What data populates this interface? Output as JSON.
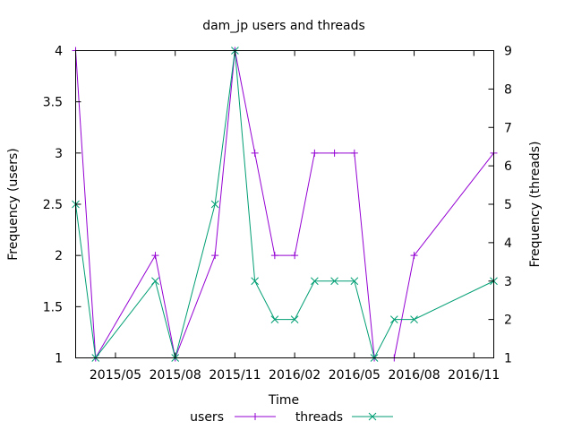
{
  "chart_data": {
    "type": "line",
    "title": "dam_jp users and threads",
    "xlabel": "Time",
    "ylabel": "Frequency (users)",
    "y2label": "Frequency (threads)",
    "x": [
      "2015-03",
      "2015-04",
      "2015-05",
      "2015-06",
      "2015-07",
      "2015-08",
      "2015-09",
      "2015-10",
      "2015-11",
      "2015-12",
      "2016-01",
      "2016-02",
      "2016-03",
      "2016-04",
      "2016-05",
      "2016-06",
      "2016-07",
      "2016-08",
      "2016-09",
      "2016-10",
      "2016-11",
      "2016-12"
    ],
    "xlim": [
      "2015-03",
      "2016-12"
    ],
    "x_ticks": [
      "2015/05",
      "2015/08",
      "2015/11",
      "2016/02",
      "2016/05",
      "2016/08",
      "2016/11"
    ],
    "ylim": [
      1,
      4
    ],
    "y_ticks": [
      "1",
      "1.5",
      "2",
      "2.5",
      "3",
      "3.5",
      "4"
    ],
    "y2lim": [
      1,
      9
    ],
    "y2_ticks": [
      "1",
      "2",
      "3",
      "4",
      "5",
      "6",
      "7",
      "8",
      "9"
    ],
    "legend_position": "bottom",
    "grid": false,
    "series": [
      {
        "name": "users",
        "axis": "left",
        "color": "#9400d3",
        "marker": "plus",
        "values": [
          4,
          1,
          null,
          null,
          2,
          1,
          null,
          2,
          4,
          3,
          2,
          2,
          3,
          3,
          3,
          1,
          1,
          2,
          null,
          null,
          null,
          3
        ]
      },
      {
        "name": "threads",
        "axis": "right",
        "color": "#009e73",
        "marker": "cross",
        "values": [
          5,
          1,
          null,
          null,
          3,
          1,
          null,
          5,
          9,
          3,
          2,
          2,
          3,
          3,
          3,
          1,
          2,
          2,
          null,
          null,
          null,
          3
        ]
      }
    ]
  }
}
